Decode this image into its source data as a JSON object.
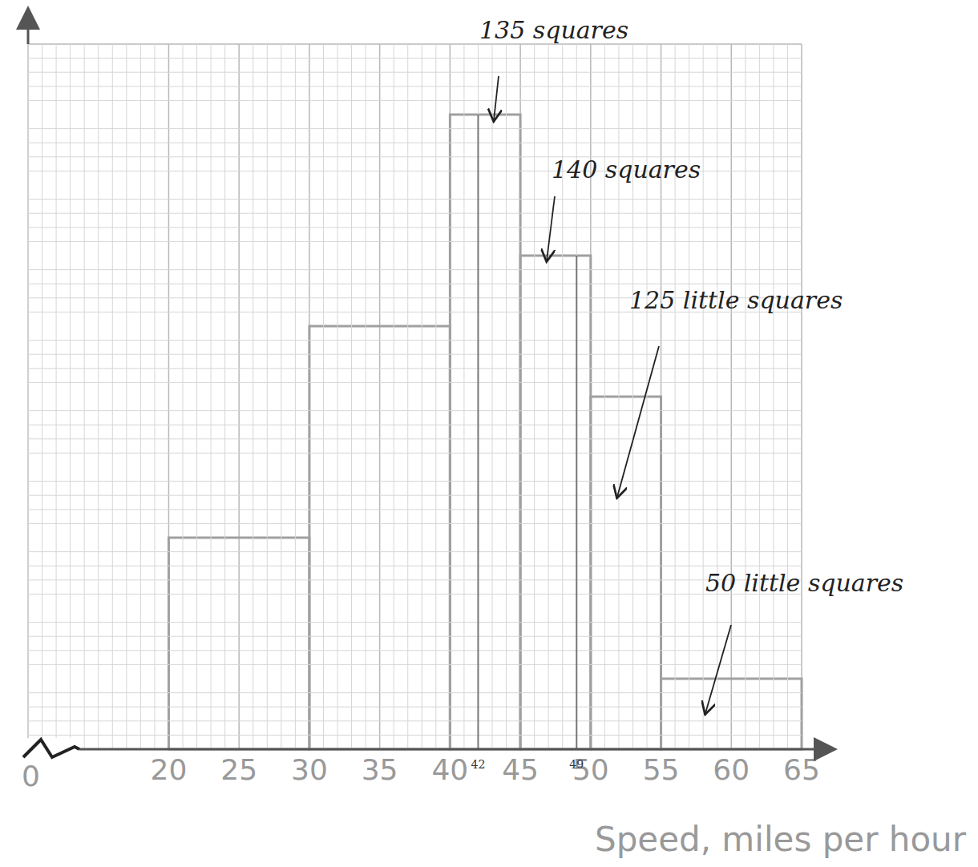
{
  "chart_data": {
    "type": "histogram",
    "bins": [
      20,
      30,
      40,
      45,
      50,
      55,
      65
    ],
    "counts": [
      15,
      30,
      45,
      35,
      25,
      5
    ],
    "color": "#a0a0a0",
    "xlabel": "Speed, miles per hour",
    "origin_label": "0",
    "xlim": [
      10,
      65
    ],
    "xticks": [
      20,
      25,
      30,
      35,
      40,
      45,
      50,
      55,
      60,
      65
    ],
    "ylim": [
      0,
      50
    ],
    "yticks": [
      0,
      5,
      10,
      15,
      20,
      25,
      30,
      35,
      40,
      45,
      50
    ],
    "grid": true,
    "tick_labels": "x",
    "split_lines": [
      42,
      49
    ],
    "annotations": [
      {
        "text": "135 squares"
      },
      {
        "text": "140 squares"
      },
      {
        "text": "125 little squares"
      },
      {
        "text": "50 little squares"
      }
    ]
  }
}
